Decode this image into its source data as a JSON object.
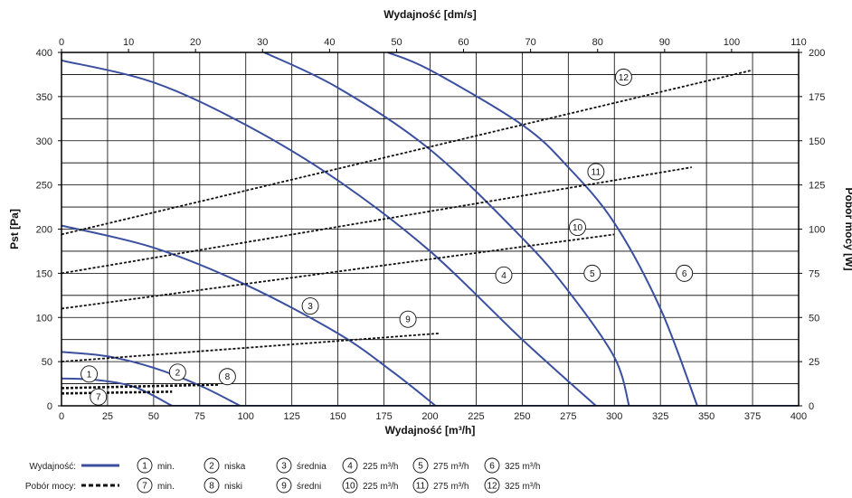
{
  "chart_data": {
    "type": "line",
    "title": "",
    "xlabel": "Wydajność [m³/h]",
    "x2label": "Wydajność [dm/s]",
    "ylabel": "Pst [Pa]",
    "y2label": "Pobór mocy [W]",
    "xlim": [
      0,
      400
    ],
    "ylim": [
      0,
      400
    ],
    "x2lim": [
      0,
      110
    ],
    "y2lim": [
      0,
      200
    ],
    "grid": true,
    "x_ticks": [
      "0",
      "25",
      "50",
      "75",
      "100",
      "125",
      "150",
      "175",
      "200",
      "225",
      "250",
      "275",
      "300",
      "325",
      "350",
      "375",
      "400"
    ],
    "y_ticks": [
      "0",
      "50",
      "100",
      "150",
      "200",
      "250",
      "300",
      "350",
      "400"
    ],
    "x2_ticks": [
      "0",
      "10",
      "20",
      "30",
      "40",
      "50",
      "60",
      "70",
      "80",
      "90",
      "100",
      "110"
    ],
    "y2_ticks": [
      "0",
      "25",
      "50",
      "75",
      "100",
      "125",
      "150",
      "175",
      "200"
    ],
    "pressure_series": [
      {
        "marker": "1",
        "points": [
          [
            0,
            31
          ],
          [
            20,
            29
          ],
          [
            40,
            21
          ],
          [
            60,
            0
          ]
        ]
      },
      {
        "marker": "2",
        "points": [
          [
            0,
            61
          ],
          [
            25,
            56
          ],
          [
            50,
            43
          ],
          [
            75,
            23
          ],
          [
            97,
            0
          ]
        ]
      },
      {
        "marker": "3",
        "points": [
          [
            0,
            204
          ],
          [
            50,
            179
          ],
          [
            100,
            137
          ],
          [
            150,
            82
          ],
          [
            180,
            38
          ],
          [
            203,
            0
          ]
        ]
      },
      {
        "marker": "4",
        "points": [
          [
            110,
            400
          ],
          [
            150,
            360
          ],
          [
            200,
            290
          ],
          [
            250,
            190
          ],
          [
            275,
            130
          ],
          [
            300,
            55
          ],
          [
            308,
            0
          ]
        ]
      },
      {
        "marker": "5",
        "points": [
          [
            177,
            400
          ],
          [
            200,
            380
          ],
          [
            250,
            318
          ],
          [
            275,
            270
          ],
          [
            300,
            207
          ],
          [
            325,
            110
          ],
          [
            345,
            0
          ]
        ]
      },
      {
        "marker": "6",
        "points": [
          [
            0,
            391
          ],
          [
            50,
            366
          ],
          [
            100,
            318
          ],
          [
            150,
            255
          ],
          [
            200,
            175
          ],
          [
            250,
            75
          ],
          [
            290,
            0
          ]
        ]
      }
    ],
    "power_series": [
      {
        "marker": "7",
        "points": [
          [
            0,
            7
          ],
          [
            60,
            8
          ]
        ]
      },
      {
        "marker": "8",
        "points": [
          [
            0,
            10
          ],
          [
            85,
            12
          ]
        ]
      },
      {
        "marker": "9",
        "points": [
          [
            0,
            25
          ],
          [
            205,
            41
          ]
        ]
      },
      {
        "marker": "10",
        "points": [
          [
            0,
            55
          ],
          [
            300,
            97
          ]
        ]
      },
      {
        "marker": "11",
        "points": [
          [
            0,
            75
          ],
          [
            342,
            135
          ]
        ]
      },
      {
        "marker": "12",
        "points": [
          [
            0,
            97
          ],
          [
            375,
            190
          ]
        ]
      }
    ],
    "markers": [
      {
        "label": "1",
        "x": 15,
        "y": 36
      },
      {
        "label": "2",
        "x": 63,
        "y": 38
      },
      {
        "label": "3",
        "x": 135,
        "y": 113
      },
      {
        "label": "4",
        "x": 240,
        "y": 148
      },
      {
        "label": "5",
        "x": 288,
        "y": 150
      },
      {
        "label": "6",
        "x": 338,
        "y": 150
      },
      {
        "label": "7",
        "x": 20,
        "y": 10
      },
      {
        "label": "8",
        "x": 90,
        "y": 33
      },
      {
        "label": "9",
        "x": 188,
        "y": 98
      },
      {
        "label": "10",
        "x": 280,
        "y": 202
      },
      {
        "label": "11",
        "x": 290,
        "y": 265
      },
      {
        "label": "12",
        "x": 305,
        "y": 372
      }
    ]
  },
  "legend": {
    "row1_label": "Wydajność:",
    "row2_label": "Pobór mocy:",
    "row1_items": [
      {
        "num": "1",
        "text": "min."
      },
      {
        "num": "2",
        "text": "niska"
      },
      {
        "num": "3",
        "text": "średnia"
      },
      {
        "num": "4",
        "text": "225 m³/h"
      },
      {
        "num": "5",
        "text": "275 m³/h"
      },
      {
        "num": "6",
        "text": "325 m³/h"
      }
    ],
    "row2_items": [
      {
        "num": "7",
        "text": "min."
      },
      {
        "num": "8",
        "text": "niski"
      },
      {
        "num": "9",
        "text": "średni"
      },
      {
        "num": "10",
        "text": "225 m³/h"
      },
      {
        "num": "11",
        "text": "275 m³/h"
      },
      {
        "num": "12",
        "text": "325 m³/h"
      }
    ]
  },
  "colors": {
    "pressure_line": "#3B4FA0",
    "power_line": "#111111",
    "grid": "#000000",
    "axis": "#000000"
  }
}
